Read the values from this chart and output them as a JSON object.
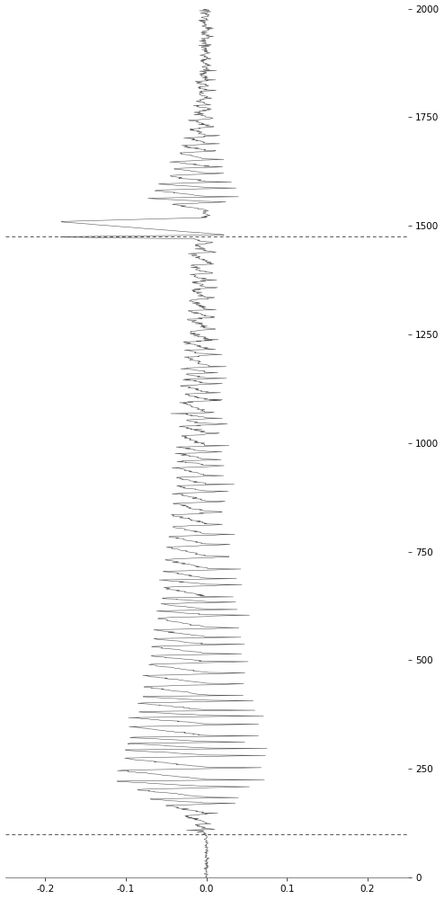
{
  "xlim": [
    -0.25,
    0.25
  ],
  "ylim": [
    0,
    2000
  ],
  "xticks": [
    -0.2,
    -0.1,
    0.0,
    0.1,
    0.2
  ],
  "yticks": [
    0,
    250,
    500,
    750,
    1000,
    1250,
    1500,
    1750,
    2000
  ],
  "dashed_line_1_y": 100,
  "dashed_line_2_y": 1475,
  "signal_color": "#555555",
  "dash_color": "#555555",
  "background_color": "#ffffff",
  "linewidth": 0.4,
  "dash_linewidth": 0.7,
  "figwidth": 4.94,
  "figheight": 10.0,
  "dpi": 100
}
